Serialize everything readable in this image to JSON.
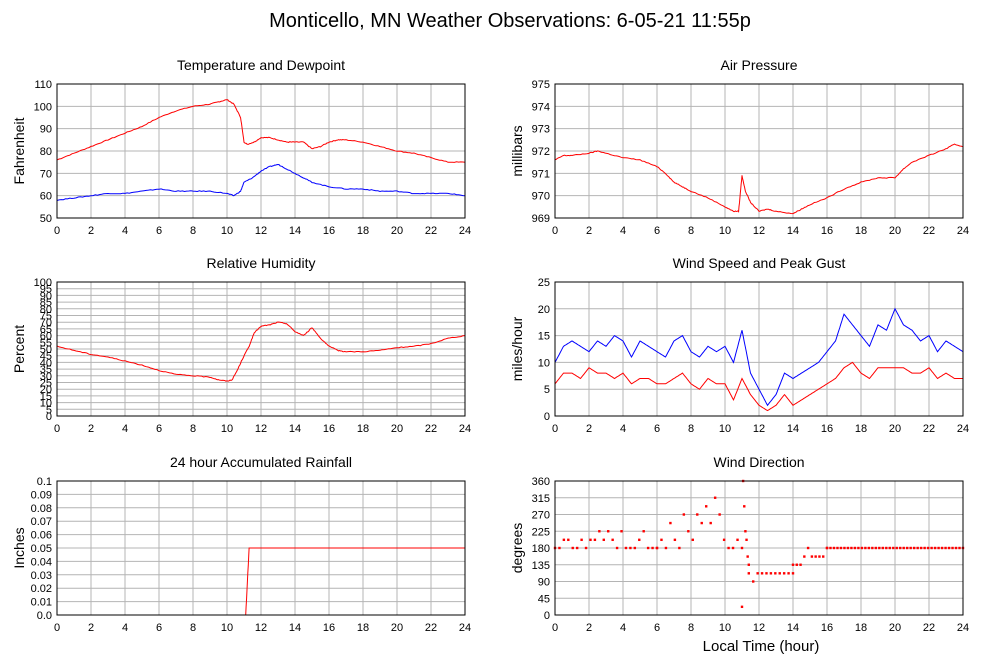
{
  "page_title": "Monticello, MN Weather Observations: 6-05-21 11:55p",
  "x_axis_label": "Local Time (hour)",
  "colors": {
    "red": "#ff0000",
    "blue": "#0000ff",
    "grid": "#b4b4b4"
  },
  "chart_data": [
    {
      "type": "line",
      "title": "Temperature and Dewpoint",
      "ylabel": "Fahrenheit",
      "xlim": [
        0,
        24
      ],
      "ylim": [
        50,
        110
      ],
      "xticks": [
        "0",
        "2",
        "4",
        "6",
        "8",
        "10",
        "12",
        "14",
        "16",
        "18",
        "20",
        "22",
        "24"
      ],
      "yticks": [
        "50",
        "60",
        "70",
        "80",
        "90",
        "100",
        "110"
      ],
      "grid": true,
      "series": [
        {
          "color": "#ff0000",
          "x": [
            0,
            1,
            2,
            3,
            4,
            5,
            6,
            7,
            8,
            9,
            9.5,
            10,
            10.4,
            10.8,
            11,
            11.2,
            11.6,
            12,
            12.5,
            13,
            13.5,
            14,
            14.5,
            15,
            15.5,
            16,
            16.5,
            17,
            18,
            19,
            20,
            21,
            22,
            23,
            24
          ],
          "y": [
            76,
            79,
            82,
            85,
            88,
            91,
            95,
            98,
            100,
            101,
            102,
            103,
            101,
            95,
            84,
            83,
            84,
            86,
            86,
            85,
            84,
            84,
            84,
            81,
            82,
            84,
            85,
            85,
            84,
            82,
            80,
            79,
            77,
            75,
            75
          ]
        },
        {
          "color": "#0000ff",
          "x": [
            0,
            1,
            2,
            3,
            4,
            5,
            6,
            7,
            8,
            9,
            10,
            10.4,
            10.8,
            11,
            11.5,
            12,
            12.5,
            13,
            13.5,
            14,
            14.5,
            15,
            16,
            17,
            18,
            19,
            20,
            21,
            22,
            23,
            24
          ],
          "y": [
            58,
            59,
            60,
            61,
            61,
            62,
            63,
            62,
            62,
            62,
            61,
            60,
            62,
            66,
            68,
            71,
            73,
            74,
            72,
            70,
            68,
            66,
            64,
            63,
            63,
            62,
            62,
            61,
            61,
            61,
            60
          ]
        }
      ]
    },
    {
      "type": "line",
      "title": "Air Pressure",
      "ylabel": "millibars",
      "xlim": [
        0,
        24
      ],
      "ylim": [
        969,
        975
      ],
      "xticks": [
        "0",
        "2",
        "4",
        "6",
        "8",
        "10",
        "12",
        "14",
        "16",
        "18",
        "20",
        "22",
        "24"
      ],
      "yticks": [
        "969",
        "970",
        "971",
        "972",
        "973",
        "974",
        "975"
      ],
      "grid": true,
      "series": [
        {
          "color": "#ff0000",
          "x": [
            0,
            0.5,
            1,
            2,
            2.5,
            3,
            4,
            5,
            6,
            6.5,
            7,
            7.5,
            8,
            9,
            10,
            10.5,
            10.8,
            11,
            11.2,
            11.5,
            12,
            12.5,
            13,
            14,
            14.5,
            15,
            16,
            17,
            18,
            19,
            20,
            20.5,
            21,
            22,
            23,
            23.5,
            24
          ],
          "y": [
            971.6,
            971.8,
            971.8,
            971.9,
            972.0,
            971.9,
            971.7,
            971.6,
            971.3,
            971.0,
            970.6,
            970.4,
            970.2,
            969.9,
            969.5,
            969.3,
            969.3,
            970.9,
            970.2,
            969.7,
            969.3,
            969.4,
            969.3,
            969.2,
            969.4,
            969.6,
            969.9,
            970.3,
            970.6,
            970.8,
            970.8,
            971.2,
            971.5,
            971.8,
            972.1,
            972.3,
            972.2
          ]
        }
      ]
    },
    {
      "type": "line",
      "title": "Relative Humidity",
      "ylabel": "Percent",
      "xlim": [
        0,
        24
      ],
      "ylim": [
        0,
        100
      ],
      "xticks": [
        "0",
        "2",
        "4",
        "6",
        "8",
        "10",
        "12",
        "14",
        "16",
        "18",
        "20",
        "22",
        "24"
      ],
      "yticks": [
        "0",
        "5",
        "10",
        "15",
        "20",
        "25",
        "30",
        "35",
        "40",
        "45",
        "50",
        "55",
        "60",
        "65",
        "70",
        "75",
        "80",
        "85",
        "90",
        "95",
        "100"
      ],
      "grid": true,
      "series": [
        {
          "color": "#ff0000",
          "x": [
            0,
            1,
            2,
            3,
            4,
            5,
            6,
            7,
            8,
            9,
            9.5,
            10,
            10.3,
            10.6,
            11,
            11.3,
            11.6,
            12,
            12.5,
            13,
            13.5,
            14,
            14.5,
            15,
            15.5,
            16,
            16.5,
            17,
            18,
            19,
            20,
            21,
            22,
            23,
            24
          ],
          "y": [
            52,
            49,
            46,
            44,
            41,
            38,
            34,
            31,
            30,
            29,
            27,
            26,
            27,
            34,
            45,
            52,
            62,
            67,
            68,
            70,
            69,
            63,
            60,
            66,
            58,
            52,
            49,
            48,
            48,
            49,
            51,
            52,
            54,
            58,
            60
          ]
        }
      ]
    },
    {
      "type": "line",
      "title": "Wind Speed and Peak Gust",
      "ylabel": "miles/hour",
      "xlim": [
        0,
        24
      ],
      "ylim": [
        0,
        25
      ],
      "xticks": [
        "0",
        "2",
        "4",
        "6",
        "8",
        "10",
        "12",
        "14",
        "16",
        "18",
        "20",
        "22",
        "24"
      ],
      "yticks": [
        "0",
        "5",
        "10",
        "15",
        "20",
        "25"
      ],
      "grid": true,
      "series": [
        {
          "color": "#0000ff",
          "x": [
            0,
            0.5,
            1,
            1.5,
            2,
            2.5,
            3,
            3.5,
            4,
            4.5,
            5,
            5.5,
            6,
            6.5,
            7,
            7.5,
            8,
            8.5,
            9,
            9.5,
            10,
            10.5,
            11,
            11.5,
            12,
            12.5,
            13,
            13.5,
            14,
            14.5,
            15,
            15.5,
            16,
            16.5,
            17,
            17.5,
            18,
            18.5,
            19,
            19.5,
            20,
            20.5,
            21,
            21.5,
            22,
            22.5,
            23,
            23.5,
            24
          ],
          "y": [
            10,
            13,
            14,
            13,
            12,
            14,
            13,
            15,
            14,
            11,
            14,
            13,
            12,
            11,
            14,
            15,
            12,
            11,
            13,
            12,
            13,
            10,
            16,
            8,
            5,
            2,
            4,
            8,
            7,
            8,
            9,
            10,
            12,
            14,
            19,
            17,
            15,
            13,
            17,
            16,
            20,
            17,
            16,
            14,
            15,
            12,
            14,
            13,
            12
          ]
        },
        {
          "color": "#ff0000",
          "x": [
            0,
            0.5,
            1,
            1.5,
            2,
            2.5,
            3,
            3.5,
            4,
            4.5,
            5,
            5.5,
            6,
            6.5,
            7,
            7.5,
            8,
            8.5,
            9,
            9.5,
            10,
            10.5,
            11,
            11.5,
            12,
            12.5,
            13,
            13.5,
            14,
            14.5,
            15,
            15.5,
            16,
            16.5,
            17,
            17.5,
            18,
            18.5,
            19,
            19.5,
            20,
            20.5,
            21,
            21.5,
            22,
            22.5,
            23,
            23.5,
            24
          ],
          "y": [
            6,
            8,
            8,
            7,
            9,
            8,
            8,
            7,
            8,
            6,
            7,
            7,
            6,
            6,
            7,
            8,
            6,
            5,
            7,
            6,
            6,
            3,
            7,
            4,
            2,
            1,
            2,
            4,
            2,
            3,
            4,
            5,
            6,
            7,
            9,
            10,
            8,
            7,
            9,
            9,
            9,
            9,
            8,
            8,
            9,
            7,
            8,
            7,
            7
          ]
        }
      ]
    },
    {
      "type": "line",
      "title": "24 hour Accumulated Rainfall",
      "ylabel": "Inches",
      "xlim": [
        0,
        24
      ],
      "ylim": [
        0,
        0.1
      ],
      "xticks": [
        "0",
        "2",
        "4",
        "6",
        "8",
        "10",
        "12",
        "14",
        "16",
        "18",
        "20",
        "22",
        "24"
      ],
      "yticks": [
        "0.0",
        "0.01",
        "0.02",
        "0.03",
        "0.04",
        "0.05",
        "0.06",
        "0.07",
        "0.08",
        "0.09",
        "0.1"
      ],
      "grid": true,
      "series": [
        {
          "color": "#ff0000",
          "x": [
            0,
            11.1,
            11.3,
            24
          ],
          "y": [
            0,
            0,
            0.05,
            0.05
          ]
        }
      ]
    },
    {
      "type": "scatter",
      "title": "Wind Direction",
      "ylabel": "degrees",
      "xlabel": "Local Time (hour)",
      "xlim": [
        0,
        24
      ],
      "ylim": [
        0,
        360
      ],
      "xticks": [
        "0",
        "2",
        "4",
        "6",
        "8",
        "10",
        "12",
        "14",
        "16",
        "18",
        "20",
        "22",
        "24"
      ],
      "yticks": [
        "0",
        "45",
        "90",
        "135",
        "180",
        "225",
        "270",
        "315",
        "360"
      ],
      "grid": true,
      "series": [
        {
          "color": "#ff0000",
          "segments": [
            {
              "from": 0,
              "to": 6,
              "values": [
                180,
                180,
                202,
                202,
                180,
                180,
                202,
                180,
                202,
                202,
                225,
                202,
                225,
                202,
                180,
                225,
                180,
                180,
                180,
                202,
                225,
                180,
                180,
                180
              ]
            },
            {
              "from": 6,
              "to": 11,
              "values": [
                180,
                202,
                180,
                247,
                202,
                180,
                270,
                225,
                202,
                270,
                247,
                292,
                247,
                315,
                270,
                202,
                180,
                180,
                202,
                180
              ]
            },
            {
              "from": 11,
              "to": 11.4,
              "values": [
                22,
                360,
                292,
                225,
                202,
                157,
                135
              ]
            },
            {
              "from": 11.4,
              "to": 14,
              "values": [
                112,
                90,
                112,
                112,
                112,
                112,
                112,
                112,
                112,
                112,
                112
              ]
            },
            {
              "from": 14,
              "to": 16,
              "values": [
                135,
                135,
                135,
                157,
                180,
                157,
                157,
                157,
                157,
                180
              ]
            },
            {
              "from": 16,
              "to": 24,
              "values": [
                180,
                180,
                180,
                180,
                180,
                180,
                180,
                180,
                180,
                180,
                180,
                180,
                180,
                180,
                180,
                180,
                180,
                180,
                180,
                180,
                180,
                180,
                180,
                180,
                180,
                180,
                180,
                180,
                180,
                180,
                180,
                180,
                180,
                180,
                180,
                180,
                180,
                180,
                180,
                180
              ]
            }
          ]
        }
      ]
    }
  ]
}
